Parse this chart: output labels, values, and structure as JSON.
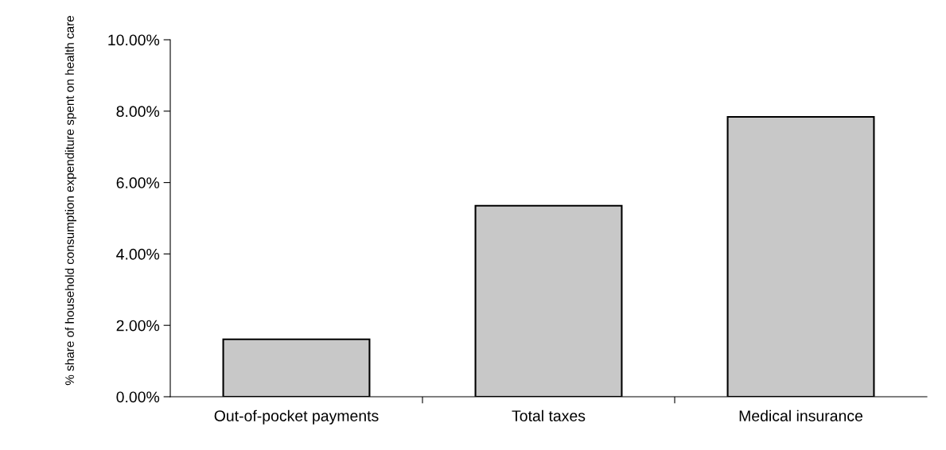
{
  "chart_data": {
    "type": "bar",
    "ylabel": "% share of household consumption expenditure spent on health care",
    "categories": [
      "Out-of-pocket payments",
      "Total taxes",
      "Medical insurance"
    ],
    "values": [
      1.61,
      5.35,
      7.84
    ],
    "color": "#c8c8c8",
    "ylim": [
      0,
      10
    ],
    "yticks": [
      {
        "value": 0,
        "label": "0.00%"
      },
      {
        "value": 2,
        "label": "2.00%"
      },
      {
        "value": 4,
        "label": "4.00%"
      },
      {
        "value": 6,
        "label": "6.00%"
      },
      {
        "value": 8,
        "label": "8.00%"
      },
      {
        "value": 10,
        "label": "10.00%"
      }
    ],
    "grid": false,
    "legend": false
  }
}
